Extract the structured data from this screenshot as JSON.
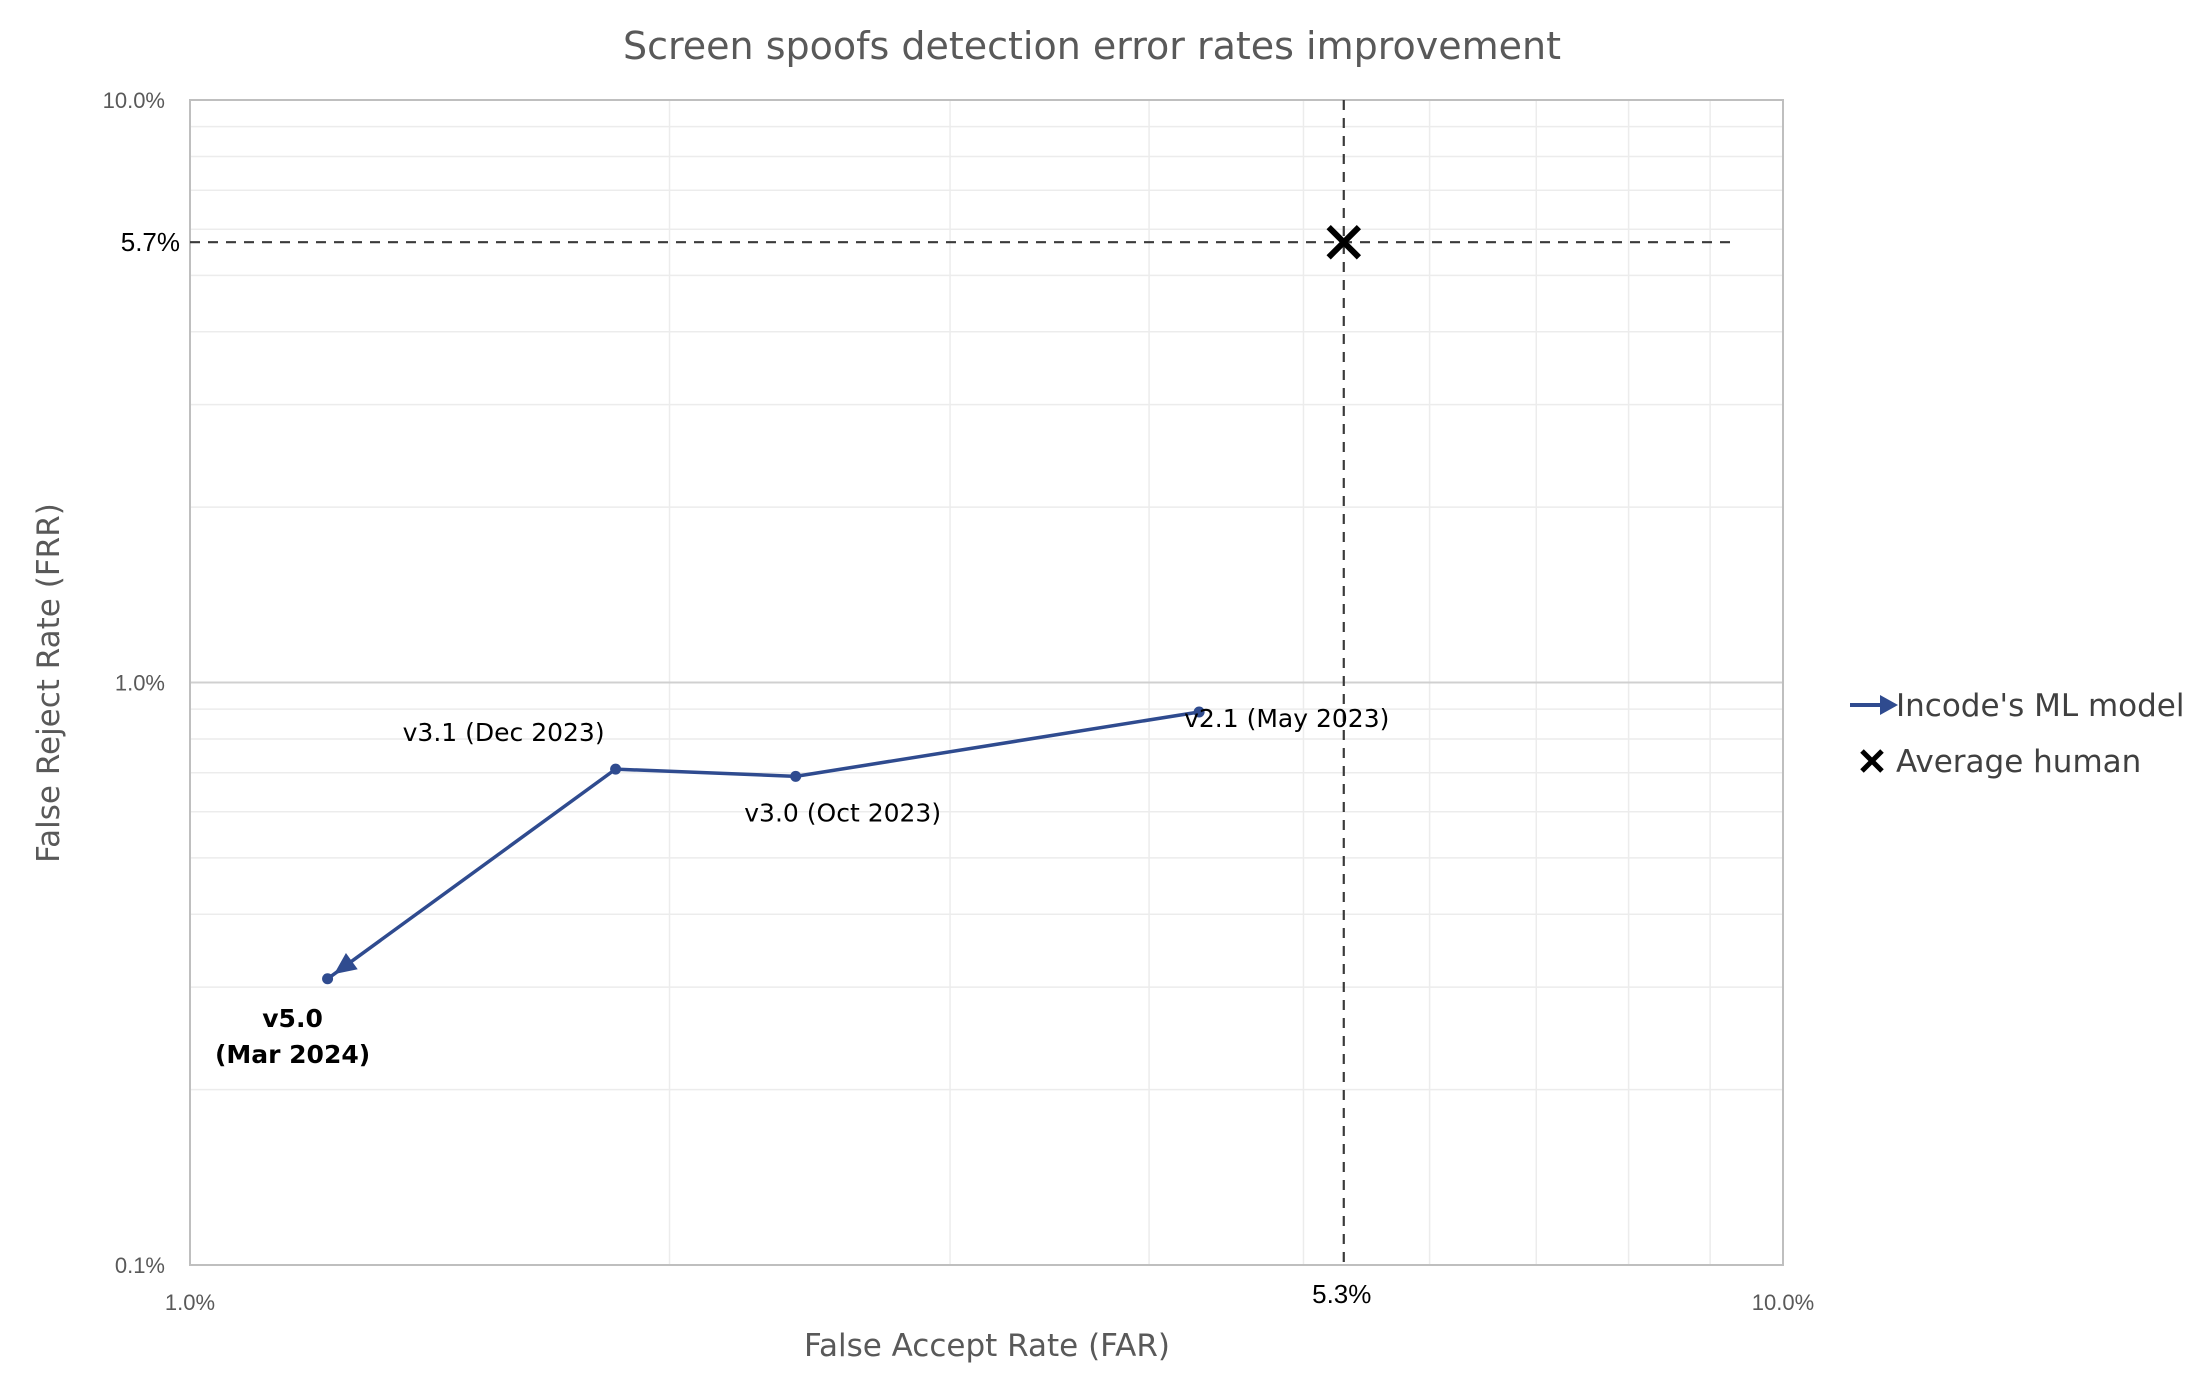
{
  "chart_data": {
    "type": "line",
    "title": "Screen spoofs detection error rates improvement",
    "xlabel": "False Accept Rate (FAR)",
    "ylabel": "False Reject Rate (FRR)",
    "x_scale": "log",
    "y_scale": "log",
    "xlim": [
      1.0,
      10.0
    ],
    "ylim": [
      0.1,
      10.0
    ],
    "x_ticks": [
      "1.0%",
      "10.0%"
    ],
    "y_ticks": [
      "0.1%",
      "1.0%",
      "10.0%"
    ],
    "grid": true,
    "legend_position": "right",
    "series": [
      {
        "name": "Incode's ML model",
        "color": "#2F4B8F",
        "marker": "dot",
        "end_marker": "arrow",
        "points": [
          {
            "x": 4.3,
            "y": 0.89,
            "label": "v2.1 (May 2023)",
            "bold": false
          },
          {
            "x": 2.4,
            "y": 0.69,
            "label": "v3.0 (Oct 2023)",
            "bold": false
          },
          {
            "x": 1.85,
            "y": 0.71,
            "label": "v3.1 (Dec 2023)",
            "bold": false
          },
          {
            "x": 1.22,
            "y": 0.31,
            "label": "v5.0\n(Mar 2024)",
            "bold": true
          }
        ]
      },
      {
        "name": "Average human",
        "color": "#000000",
        "marker": "x",
        "points": [
          {
            "x": 5.3,
            "y": 5.7
          }
        ]
      }
    ],
    "reference_lines": [
      {
        "axis": "x",
        "value": 5.3,
        "label": "5.3%"
      },
      {
        "axis": "y",
        "value": 5.7,
        "label": "5.7%"
      }
    ]
  }
}
